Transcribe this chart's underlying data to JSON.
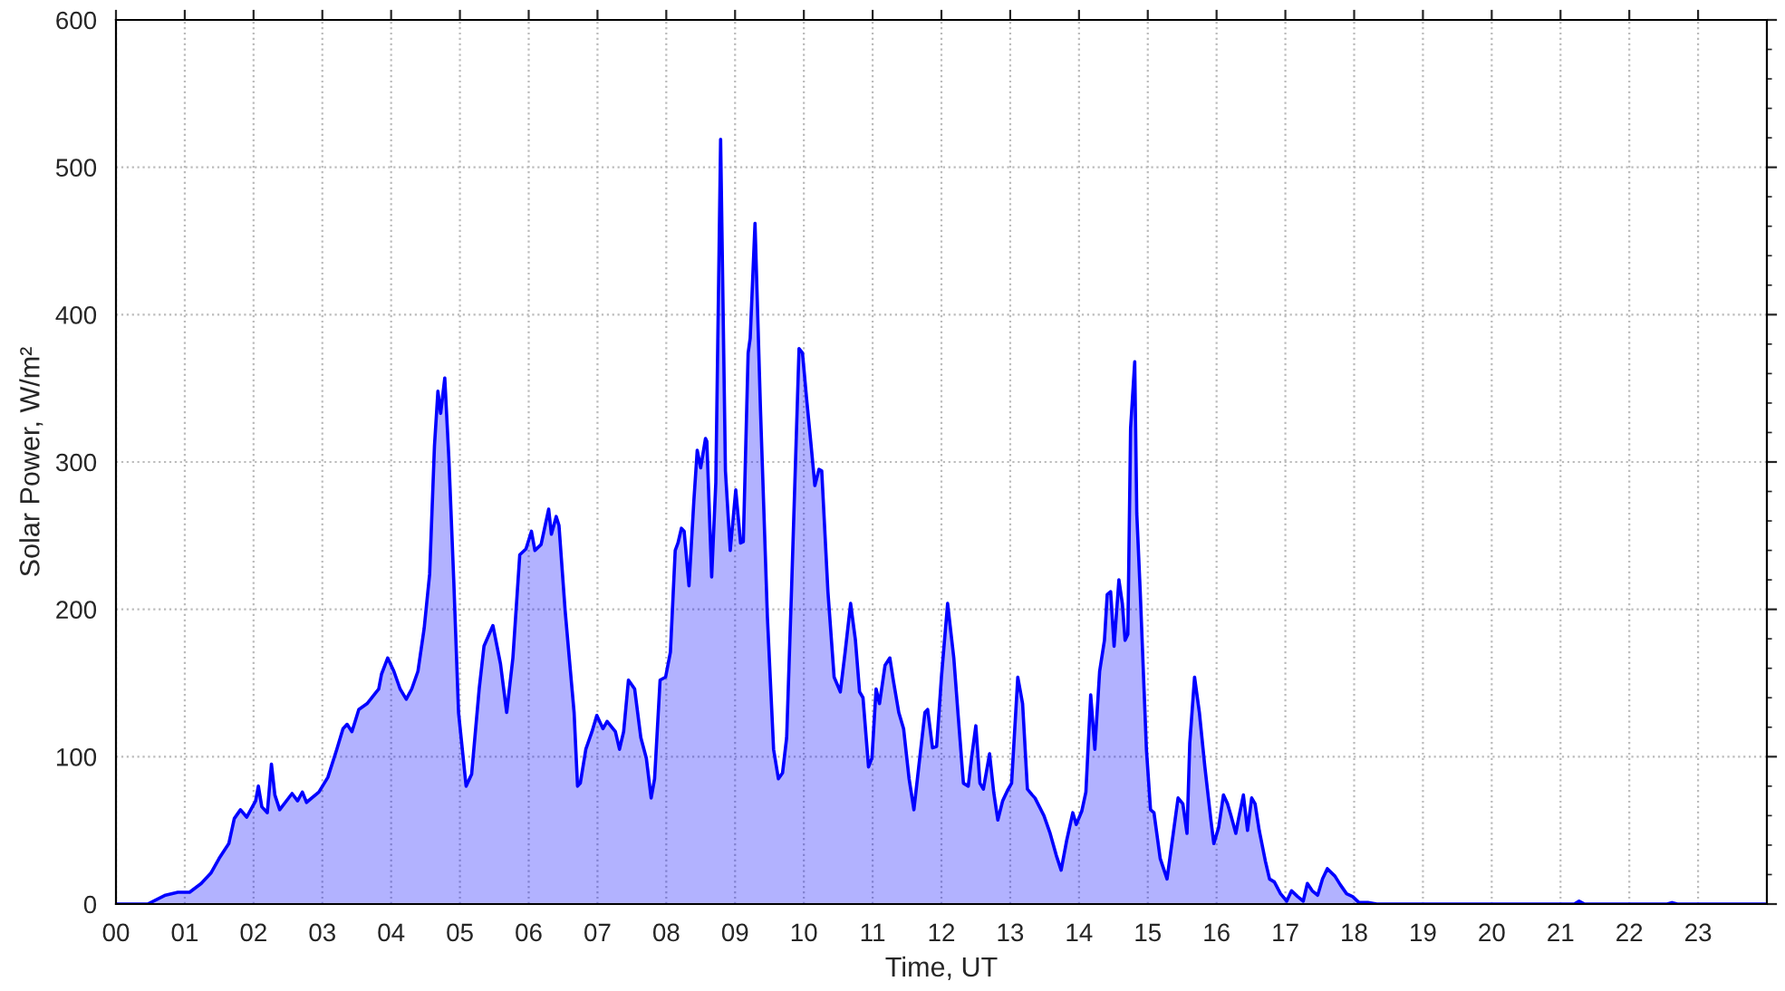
{
  "chart_data": {
    "type": "area",
    "xlabel": "Time, UT",
    "ylabel": "Solar Power, W/m²",
    "xlim": [
      0,
      24
    ],
    "ylim": [
      0,
      600
    ],
    "xticks": [
      {
        "value": 0,
        "label": "00"
      },
      {
        "value": 1,
        "label": "01"
      },
      {
        "value": 2,
        "label": "02"
      },
      {
        "value": 3,
        "label": "03"
      },
      {
        "value": 4,
        "label": "04"
      },
      {
        "value": 5,
        "label": "05"
      },
      {
        "value": 6,
        "label": "06"
      },
      {
        "value": 7,
        "label": "07"
      },
      {
        "value": 8,
        "label": "08"
      },
      {
        "value": 9,
        "label": "09"
      },
      {
        "value": 10,
        "label": "10"
      },
      {
        "value": 11,
        "label": "11"
      },
      {
        "value": 12,
        "label": "12"
      },
      {
        "value": 13,
        "label": "13"
      },
      {
        "value": 14,
        "label": "14"
      },
      {
        "value": 15,
        "label": "15"
      },
      {
        "value": 16,
        "label": "16"
      },
      {
        "value": 17,
        "label": "17"
      },
      {
        "value": 18,
        "label": "18"
      },
      {
        "value": 19,
        "label": "19"
      },
      {
        "value": 20,
        "label": "20"
      },
      {
        "value": 21,
        "label": "21"
      },
      {
        "value": 22,
        "label": "22"
      },
      {
        "value": 23,
        "label": "23"
      }
    ],
    "yticks": [
      0,
      100,
      200,
      300,
      400,
      500,
      600
    ],
    "grid": true,
    "line_style": "solid",
    "marker": "none",
    "series": [
      {
        "color": "#0000ff",
        "x": [
          0,
          0.46,
          0.72,
          0.9,
          1.07,
          1.24,
          1.38,
          1.5,
          1.64,
          1.72,
          1.81,
          1.9,
          2.03,
          2.07,
          2.12,
          2.2,
          2.26,
          2.31,
          2.38,
          2.56,
          2.64,
          2.71,
          2.77,
          2.95,
          3.08,
          3.21,
          3.3,
          3.36,
          3.43,
          3.53,
          3.65,
          3.82,
          3.86,
          3.95,
          4.04,
          4.13,
          4.22,
          4.3,
          4.39,
          4.48,
          4.56,
          4.63,
          4.68,
          4.72,
          4.78,
          4.84,
          4.91,
          4.98,
          5.09,
          5.17,
          5.28,
          5.35,
          5.48,
          5.59,
          5.68,
          5.77,
          5.87,
          5.96,
          6.04,
          6.09,
          6.18,
          6.29,
          6.33,
          6.4,
          6.44,
          6.53,
          6.59,
          6.66,
          6.71,
          6.75,
          6.83,
          6.92,
          6.99,
          7.08,
          7.14,
          7.26,
          7.32,
          7.38,
          7.45,
          7.54,
          7.63,
          7.71,
          7.78,
          7.83,
          7.91,
          7.99,
          8.06,
          8.13,
          8.17,
          8.22,
          8.26,
          8.33,
          8.4,
          8.45,
          8.5,
          8.57,
          8.59,
          8.66,
          8.72,
          8.79,
          8.86,
          8.93,
          9.01,
          9.08,
          9.12,
          9.19,
          9.22,
          9.29,
          9.37,
          9.47,
          9.56,
          9.63,
          9.69,
          9.75,
          9.82,
          9.93,
          9.98,
          10.04,
          10.1,
          10.16,
          10.22,
          10.26,
          10.35,
          10.44,
          10.53,
          10.6,
          10.68,
          10.75,
          10.81,
          10.86,
          10.94,
          10.99,
          11.05,
          11.1,
          11.18,
          11.25,
          11.3,
          11.38,
          11.45,
          11.53,
          11.6,
          11.67,
          11.76,
          11.8,
          11.87,
          11.93,
          12.0,
          12.09,
          12.18,
          12.24,
          12.32,
          12.39,
          12.44,
          12.5,
          12.56,
          12.61,
          12.7,
          12.76,
          12.82,
          12.89,
          12.96,
          13.02,
          13.11,
          13.18,
          13.25,
          13.32,
          13.36,
          13.49,
          13.58,
          13.67,
          13.74,
          13.82,
          13.91,
          13.96,
          14.04,
          14.1,
          14.17,
          14.23,
          14.3,
          14.37,
          14.41,
          14.46,
          14.51,
          14.58,
          14.63,
          14.67,
          14.71,
          14.75,
          14.81,
          14.84,
          14.89,
          14.98,
          15.04,
          15.09,
          15.18,
          15.28,
          15.37,
          15.44,
          15.51,
          15.57,
          15.61,
          15.68,
          15.75,
          15.83,
          15.92,
          15.96,
          16.03,
          16.1,
          16.16,
          16.21,
          16.28,
          16.32,
          16.39,
          16.45,
          16.51,
          16.56,
          16.62,
          16.71,
          16.77,
          16.84,
          16.93,
          17.02,
          17.09,
          17.18,
          17.26,
          17.32,
          17.39,
          17.47,
          17.54,
          17.61,
          17.72,
          17.8,
          17.89,
          17.98,
          18.07,
          18.2,
          18.33,
          20.0,
          21.2,
          21.27,
          21.35,
          22.55,
          22.62,
          22.7,
          23.98
        ],
        "values": [
          0,
          0,
          6,
          8,
          8,
          14,
          21,
          31,
          41,
          58,
          64,
          59,
          70,
          80,
          66,
          62,
          95,
          74,
          64,
          75,
          70,
          76,
          69,
          76,
          86,
          105,
          119,
          122,
          117,
          132,
          136,
          146,
          156,
          167,
          158,
          146,
          139,
          146,
          158,
          187,
          224,
          311,
          348,
          333,
          357,
          302,
          220,
          130,
          80,
          88,
          146,
          175,
          189,
          163,
          130,
          167,
          237,
          241,
          253,
          240,
          244,
          268,
          251,
          263,
          257,
          199,
          167,
          130,
          80,
          82,
          105,
          117,
          128,
          119,
          124,
          117,
          105,
          117,
          152,
          146,
          113,
          99,
          72,
          85,
          152,
          154,
          171,
          240,
          245,
          255,
          253,
          216,
          273,
          308,
          296,
          316,
          314,
          222,
          286,
          519,
          294,
          240,
          281,
          245,
          246,
          374,
          384,
          462,
          335,
          195,
          105,
          85,
          89,
          113,
          212,
          377,
          374,
          343,
          314,
          284,
          295,
          294,
          212,
          154,
          144,
          171,
          204,
          179,
          144,
          140,
          93,
          99,
          146,
          136,
          162,
          167,
          152,
          130,
          119,
          85,
          64,
          93,
          130,
          132,
          106,
          107,
          154,
          204,
          167,
          130,
          82,
          80,
          100,
          121,
          82,
          78,
          102,
          76,
          57,
          70,
          77,
          82,
          154,
          136,
          78,
          74,
          72,
          60,
          48,
          33,
          23,
          43,
          62,
          54,
          63,
          76,
          142,
          105,
          158,
          179,
          210,
          212,
          175,
          220,
          204,
          179,
          183,
          323,
          368,
          265,
          212,
          105,
          64,
          62,
          31,
          17,
          48,
          72,
          68,
          48,
          109,
          154,
          130,
          93,
          56,
          41,
          52,
          74,
          68,
          60,
          48,
          58,
          74,
          50,
          72,
          68,
          50,
          29,
          17,
          15,
          7,
          2,
          9,
          5,
          2,
          14,
          9,
          6,
          17,
          24,
          19,
          13,
          7,
          5,
          1,
          1,
          0,
          0,
          0,
          2,
          0,
          0,
          1,
          0,
          0
        ]
      }
    ]
  }
}
